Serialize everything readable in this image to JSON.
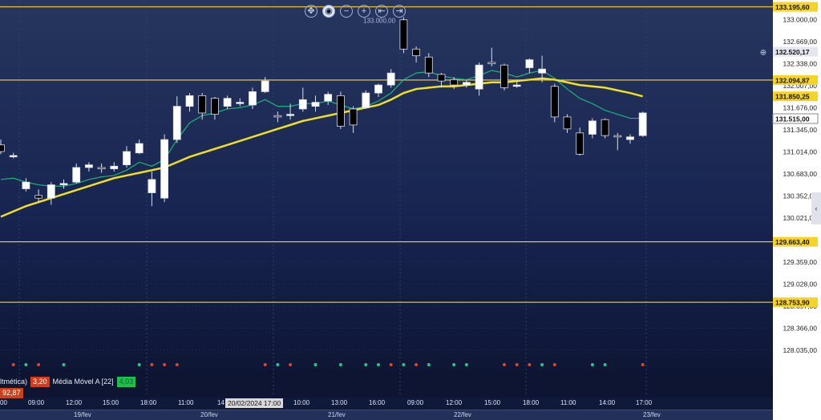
{
  "toolbar": [
    {
      "name": "crosshair-icon",
      "glyph": "✥"
    },
    {
      "name": "cursor-icon",
      "glyph": "◉"
    },
    {
      "name": "zoom-out-icon",
      "glyph": "−"
    },
    {
      "name": "zoom-in-icon",
      "glyph": "+"
    },
    {
      "name": "fit-left-icon",
      "glyph": "⇤"
    },
    {
      "name": "fit-right-icon",
      "glyph": "⇥"
    }
  ],
  "legend": {
    "prefix": "ltmética)",
    "value1": "3,20",
    "ma_label": "Média Móvel A [22]",
    "ma_value": "4,03",
    "below_value": "92,87"
  },
  "cursor_date": "20/02/2024 17:00",
  "colors": {
    "background": "#0f1a3a",
    "ma_yellow": "#f0e020",
    "ma_green": "#1fb47a",
    "hline": "#e8c23a",
    "candle_up": "#ffffff",
    "candle_down": "#000000",
    "buy_dot": "#2ec48a",
    "sell_dot": "#e0442a"
  },
  "chart_data": {
    "type": "candlestick",
    "yrange": [
      127.9,
      133.25
    ],
    "y_ticks": [
      "133.000,00",
      "132.669,00",
      "132.338,00",
      "132.007,00",
      "131.676,00",
      "131.345,00",
      "131.014,00",
      "130.683,00",
      "130.352,00",
      "130.021,00",
      "129.359,00",
      "129.028,00",
      "128.697,00",
      "128.366,00",
      "128.035,00"
    ],
    "y_tick_values": [
      133.0,
      132.669,
      132.338,
      132.007,
      131.676,
      131.345,
      131.014,
      130.683,
      130.352,
      130.021,
      129.359,
      129.028,
      128.697,
      128.366,
      128.035
    ],
    "level_lines": [
      {
        "value": 133.1956,
        "label": "133.195,60"
      },
      {
        "value": 132.09487,
        "label": "132.094,87"
      },
      {
        "value": 129.6634,
        "label": "129.663,40"
      },
      {
        "value": 128.7539,
        "label": "128.753,90"
      }
    ],
    "price_labels": [
      {
        "value": 132.52017,
        "label": "132.520,17",
        "style": "grey"
      },
      {
        "value": 131.85025,
        "label": "131.850,25",
        "style": "yellow"
      },
      {
        "value": 131.515,
        "label": "131.515,00",
        "style": "white"
      }
    ],
    "top_label": {
      "value": 133.0,
      "label": "133.000,00"
    },
    "time_labels": [
      "00",
      "09:00",
      "12:00",
      "15:00",
      "18:00",
      "11:00",
      "14",
      "10:00",
      "13:00",
      "16:00",
      "09:00",
      "12:00",
      "15:00",
      "18:00",
      "11:00",
      "14:00",
      "17:00"
    ],
    "date_labels": [
      "19/fev",
      "20/fev",
      "21/fev",
      "22/fev",
      "23/fev"
    ],
    "candles": [
      [
        0,
        131.12,
        131.02,
        131.2,
        130.98
      ],
      [
        1,
        130.94,
        130.96,
        131.0,
        130.92
      ],
      [
        2,
        130.46,
        130.56,
        130.62,
        130.42
      ],
      [
        3,
        130.36,
        130.32,
        130.45,
        130.25
      ],
      [
        4,
        130.32,
        130.52,
        130.56,
        130.22
      ],
      [
        5,
        130.52,
        130.54,
        130.6,
        130.46
      ],
      [
        6,
        130.56,
        130.78,
        130.84,
        130.54
      ],
      [
        7,
        130.78,
        130.82,
        130.86,
        130.72
      ],
      [
        8,
        130.78,
        130.76,
        130.84,
        130.7
      ],
      [
        9,
        130.76,
        130.8,
        130.86,
        130.72
      ],
      [
        10,
        130.82,
        131.02,
        131.1,
        130.78
      ],
      [
        11,
        131.0,
        131.14,
        131.2,
        130.98
      ],
      [
        12,
        130.4,
        130.6,
        130.72,
        130.2
      ],
      [
        13,
        130.32,
        131.2,
        131.28,
        130.26
      ],
      [
        14,
        131.2,
        131.7,
        131.85,
        131.15
      ],
      [
        15,
        131.7,
        131.86,
        131.9,
        131.62
      ],
      [
        16,
        131.86,
        131.6,
        131.9,
        131.5
      ],
      [
        17,
        131.82,
        131.58,
        131.84,
        131.5
      ],
      [
        18,
        131.7,
        131.82,
        131.86,
        131.66
      ],
      [
        19,
        131.74,
        131.76,
        131.82,
        131.7
      ],
      [
        20,
        131.72,
        131.92,
        131.98,
        131.66
      ],
      [
        21,
        131.92,
        132.08,
        132.14,
        131.9
      ],
      [
        22,
        131.56,
        131.54,
        131.62,
        131.46
      ],
      [
        23,
        131.56,
        131.58,
        131.74,
        131.5
      ],
      [
        24,
        131.66,
        131.8,
        131.98,
        131.62
      ],
      [
        25,
        131.7,
        131.76,
        131.86,
        131.62
      ],
      [
        26,
        131.78,
        131.88,
        131.92,
        131.72
      ],
      [
        27,
        131.86,
        131.4,
        131.92,
        131.36
      ],
      [
        28,
        131.66,
        131.42,
        131.7,
        131.3
      ],
      [
        29,
        131.68,
        131.9,
        131.94,
        131.66
      ],
      [
        30,
        131.9,
        132.02,
        132.04,
        131.84
      ],
      [
        31,
        132.02,
        132.2,
        132.26,
        131.98
      ],
      [
        32,
        133.0,
        132.56,
        133.04,
        132.5
      ],
      [
        33,
        132.56,
        132.46,
        132.6,
        132.36
      ],
      [
        34,
        132.44,
        132.2,
        132.5,
        132.14
      ],
      [
        35,
        132.18,
        132.08,
        132.2,
        131.98
      ],
      [
        36,
        132.1,
        132.02,
        132.14,
        131.96
      ],
      [
        37,
        132.02,
        132.06,
        132.1,
        131.98
      ],
      [
        38,
        131.96,
        132.32,
        132.36,
        131.86
      ],
      [
        39,
        132.36,
        132.34,
        132.58,
        132.3
      ],
      [
        40,
        132.32,
        131.98,
        132.34,
        131.94
      ],
      [
        41,
        132.0,
        132.02,
        132.08,
        131.98
      ],
      [
        42,
        132.28,
        132.4,
        132.42,
        132.2
      ],
      [
        43,
        132.2,
        132.26,
        132.46,
        132.06
      ],
      [
        44,
        132.0,
        131.54,
        132.04,
        131.46
      ],
      [
        45,
        131.54,
        131.36,
        131.58,
        131.3
      ],
      [
        46,
        131.3,
        130.98,
        131.38,
        130.96
      ],
      [
        47,
        131.28,
        131.48,
        131.52,
        131.22
      ],
      [
        48,
        131.5,
        131.26,
        131.52,
        131.22
      ],
      [
        49,
        131.26,
        131.24,
        131.3,
        131.04
      ],
      [
        50,
        131.2,
        131.24,
        131.28,
        131.14
      ],
      [
        51,
        131.26,
        131.6,
        131.62,
        131.24
      ]
    ],
    "ma_yellow": [
      130.04,
      130.12,
      130.2,
      130.26,
      130.32,
      130.38,
      130.44,
      130.5,
      130.56,
      130.62,
      130.66,
      130.7,
      130.74,
      130.78,
      130.86,
      130.94,
      131.0,
      131.06,
      131.12,
      131.18,
      131.24,
      131.3,
      131.36,
      131.42,
      131.48,
      131.52,
      131.56,
      131.6,
      131.64,
      131.68,
      131.72,
      131.8,
      131.9,
      131.96,
      131.98,
      132.0,
      132.0,
      132.02,
      132.04,
      132.06,
      132.06,
      132.08,
      132.1,
      132.12,
      132.1,
      132.06,
      132.02,
      132.0,
      131.98,
      131.94,
      131.9,
      131.85
    ],
    "ma_green": [
      130.6,
      130.62,
      130.56,
      130.52,
      130.5,
      130.5,
      130.54,
      130.6,
      130.64,
      130.66,
      130.74,
      130.86,
      130.8,
      130.9,
      131.2,
      131.45,
      131.56,
      131.6,
      131.66,
      131.68,
      131.72,
      131.8,
      131.7,
      131.7,
      131.74,
      131.74,
      131.78,
      131.72,
      131.66,
      131.7,
      131.78,
      131.9,
      132.1,
      132.2,
      132.22,
      132.16,
      132.12,
      132.1,
      132.16,
      132.24,
      132.2,
      132.14,
      132.2,
      132.24,
      132.12,
      131.96,
      131.82,
      131.74,
      131.64,
      131.58,
      131.52,
      131.52
    ],
    "signals": [
      {
        "i": 1,
        "type": "sell"
      },
      {
        "i": 2,
        "type": "buy"
      },
      {
        "i": 3,
        "type": "sell"
      },
      {
        "i": 5,
        "type": "buy"
      },
      {
        "i": 11,
        "type": "buy"
      },
      {
        "i": 12,
        "type": "sell"
      },
      {
        "i": 13,
        "type": "sell"
      },
      {
        "i": 14,
        "type": "sell"
      },
      {
        "i": 21,
        "type": "sell"
      },
      {
        "i": 22,
        "type": "buy"
      },
      {
        "i": 23,
        "type": "sell"
      },
      {
        "i": 25,
        "type": "buy"
      },
      {
        "i": 27,
        "type": "buy"
      },
      {
        "i": 29,
        "type": "buy"
      },
      {
        "i": 30,
        "type": "buy"
      },
      {
        "i": 31,
        "type": "sell"
      },
      {
        "i": 32,
        "type": "buy"
      },
      {
        "i": 33,
        "type": "sell"
      },
      {
        "i": 34,
        "type": "buy"
      },
      {
        "i": 36,
        "type": "buy"
      },
      {
        "i": 37,
        "type": "buy"
      },
      {
        "i": 40,
        "type": "sell"
      },
      {
        "i": 41,
        "type": "sell"
      },
      {
        "i": 42,
        "type": "sell"
      },
      {
        "i": 43,
        "type": "buy"
      },
      {
        "i": 44,
        "type": "sell"
      },
      {
        "i": 47,
        "type": "buy"
      },
      {
        "i": 48,
        "type": "buy"
      },
      {
        "i": 51,
        "type": "sell"
      }
    ]
  }
}
